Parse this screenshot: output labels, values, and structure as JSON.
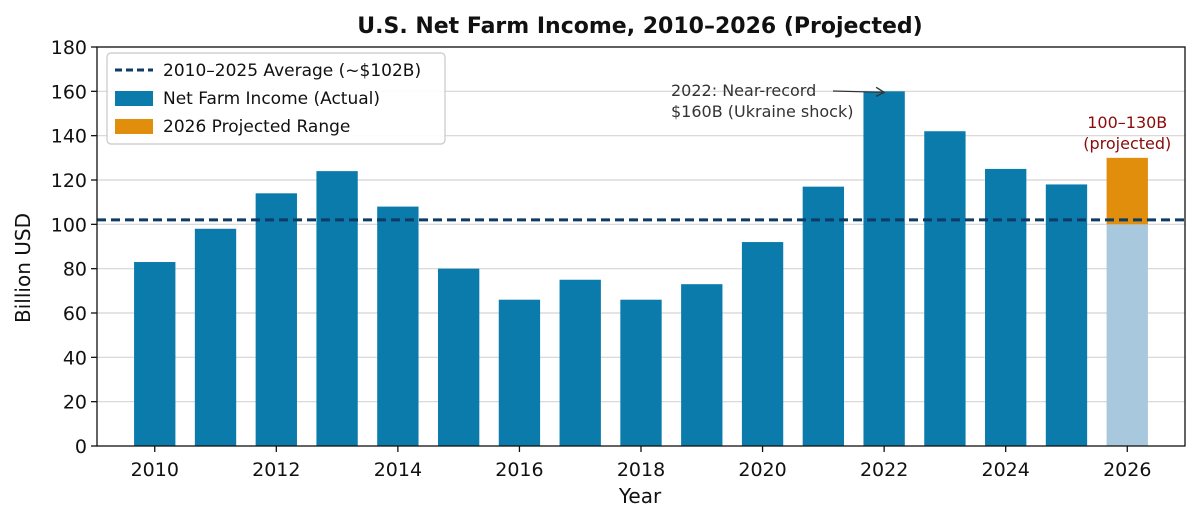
{
  "chart_data": {
    "type": "bar",
    "title": "U.S. Net Farm Income, 2010–2026 (Projected)",
    "xlabel": "Year",
    "ylabel": "Billion USD",
    "ylim": [
      0,
      180
    ],
    "yticks": [
      0,
      20,
      40,
      60,
      80,
      100,
      120,
      140,
      160,
      180
    ],
    "xticks": [
      2010,
      2012,
      2014,
      2016,
      2018,
      2020,
      2022,
      2024,
      2026
    ],
    "grid": "horizontal",
    "legend_position": "top-left",
    "series": [
      {
        "name": "Net Farm Income (Actual)",
        "color": "#0a7bab",
        "x": [
          2010,
          2011,
          2012,
          2013,
          2014,
          2015,
          2016,
          2017,
          2018,
          2019,
          2020,
          2021,
          2022,
          2023,
          2024,
          2025
        ],
        "values": [
          83,
          98,
          114,
          124,
          108,
          80,
          66,
          75,
          66,
          73,
          92,
          117,
          160,
          142,
          125,
          118
        ]
      },
      {
        "name": "2026 Projected Range",
        "color": "#e08e0b",
        "base_color": "#a8c8dd",
        "x": [
          2026
        ],
        "low": 100,
        "high": 130
      }
    ],
    "reference_line": {
      "name": "2010–2025 Average (~$102B)",
      "value": 102,
      "color": "#0d3b66",
      "style": "dashed"
    },
    "annotations": [
      {
        "lines": [
          "2022: Near-record",
          "$160B (Ukraine shock)"
        ],
        "arrow_to": {
          "x": 2022,
          "y": 160
        },
        "color": "#333333"
      },
      {
        "lines": [
          "100–130B",
          "(projected)"
        ],
        "at": {
          "x": 2026,
          "y": 130
        },
        "color": "#8b0a0a"
      }
    ]
  }
}
